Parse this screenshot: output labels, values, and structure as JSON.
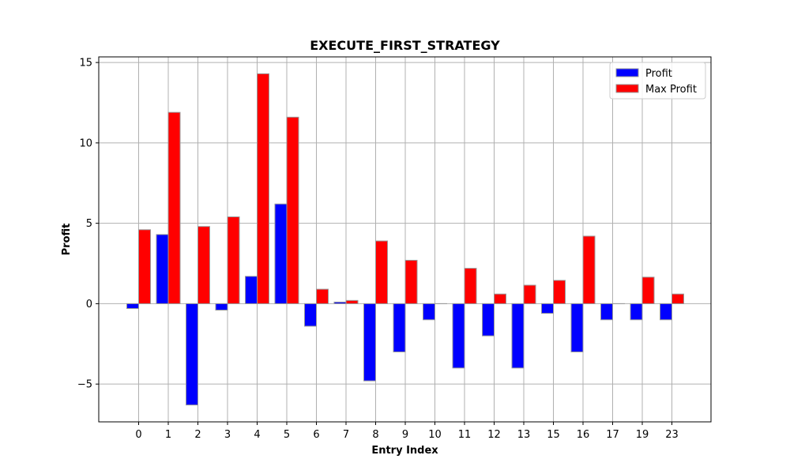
{
  "chart_data": {
    "type": "bar",
    "title": "EXECUTE_FIRST_STRATEGY",
    "xlabel": "Entry Index",
    "ylabel": "Profit",
    "categories": [
      "0",
      "1",
      "2",
      "3",
      "4",
      "5",
      "6",
      "7",
      "8",
      "9",
      "10",
      "11",
      "12",
      "13",
      "15",
      "16",
      "17",
      "19",
      "23"
    ],
    "series": [
      {
        "name": "Profit",
        "color": "#0000ff",
        "values": [
          -0.3,
          4.3,
          -6.3,
          -0.4,
          1.7,
          6.2,
          -1.4,
          0.1,
          -4.8,
          -3.0,
          -1.0,
          -4.0,
          -2.0,
          -4.0,
          -0.6,
          -3.0,
          -1.0,
          -1.0,
          -1.0
        ]
      },
      {
        "name": "Max Profit",
        "color": "#ff0000",
        "values": [
          4.6,
          11.9,
          4.8,
          5.4,
          14.3,
          11.6,
          0.9,
          0.2,
          3.9,
          2.7,
          0,
          2.2,
          0.6,
          1.15,
          1.45,
          4.2,
          0,
          1.65,
          0.6
        ]
      }
    ],
    "ylim": [
      -7.35,
      15.35
    ],
    "yticks": [
      -5,
      0,
      5,
      10,
      15
    ],
    "ytick_labels": [
      "−5",
      "0",
      "5",
      "10",
      "15"
    ],
    "grid": true,
    "legend_position": "upper right",
    "bar_edge_color": "#999999",
    "grid_color": "#b0b0b0"
  }
}
